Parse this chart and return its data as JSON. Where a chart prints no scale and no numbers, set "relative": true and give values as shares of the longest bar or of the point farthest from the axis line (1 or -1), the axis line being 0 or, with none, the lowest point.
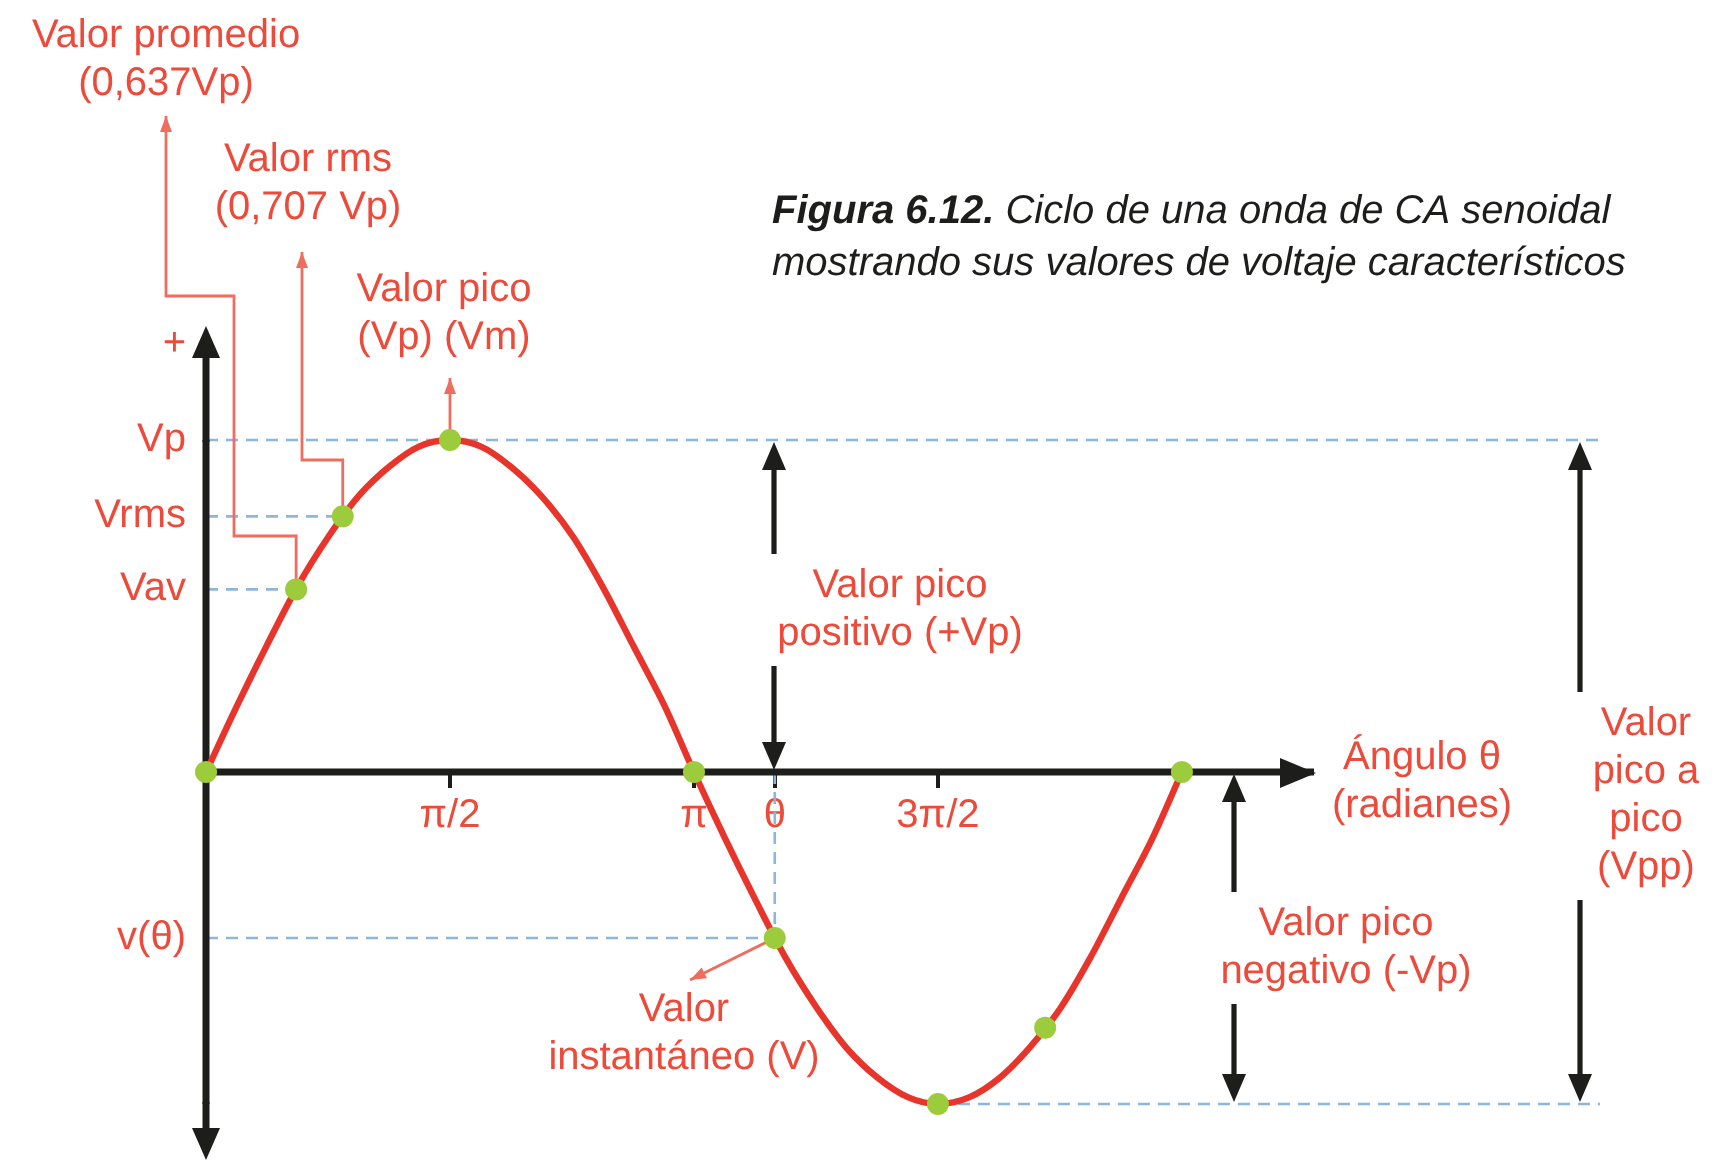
{
  "chart_data": {
    "type": "line",
    "title": "Figura 6.12. Ciclo de una onda de CA senoidal mostrando sus valores de voltaje característicos",
    "xlabel": "Ángulo θ (radianes)",
    "relative": true,
    "series": [
      {
        "color": "#e8352b",
        "marker": "none",
        "x": [
          0,
          0.2,
          0.39,
          0.59,
          0.79,
          0.98,
          1.18,
          1.37,
          1.57,
          1.77,
          1.96,
          2.16,
          2.36,
          2.55,
          2.75,
          2.95,
          3.14,
          3.34,
          3.53,
          3.73,
          3.93,
          4.12,
          4.32,
          4.52,
          4.71,
          4.91,
          5.11,
          5.3,
          5.5,
          5.69,
          5.89,
          6.09,
          6.28
        ],
        "values": [
          0,
          0.2,
          0.38,
          0.56,
          0.71,
          0.83,
          0.92,
          0.98,
          1,
          0.98,
          0.92,
          0.83,
          0.71,
          0.56,
          0.38,
          0.2,
          0,
          -0.2,
          -0.38,
          -0.56,
          -0.71,
          -0.83,
          -0.92,
          -0.98,
          -1,
          -0.98,
          -0.92,
          -0.83,
          -0.71,
          -0.56,
          -0.38,
          -0.2,
          0
        ]
      },
      {
        "type": "scatter",
        "color": "#9ccc3c",
        "marker": "circle",
        "x": [
          0,
          0.58,
          0.88,
          1.57,
          3.14,
          3.66,
          4.71,
          5.4,
          6.28
        ],
        "values": [
          0,
          0.55,
          0.77,
          1,
          0,
          -0.5,
          -1,
          -0.77,
          0
        ]
      }
    ],
    "xlim": [
      0,
      7.13
    ],
    "xticks": [
      {
        "value": 1.57,
        "label": "π/2"
      },
      {
        "value": 3.14,
        "label": "π"
      },
      {
        "value": 3.66,
        "label": "θ"
      },
      {
        "value": 4.71,
        "label": "3π/2"
      }
    ],
    "ref_lines": [
      {
        "axis": "y",
        "value": 1,
        "color": "#8db6de",
        "line_style": "dashed"
      },
      {
        "axis": "y",
        "value": -1,
        "color": "#8db6de",
        "line_style": "dashed"
      },
      {
        "axis": "y",
        "value": 0.77,
        "color": "#8db6de",
        "line_style": "dashed"
      },
      {
        "axis": "y",
        "value": 0.55,
        "color": "#8db6de",
        "line_style": "dashed"
      },
      {
        "axis": "y",
        "value": -0.5,
        "color": "#8db6de",
        "line_style": "dashed"
      },
      {
        "axis": "x",
        "value": 3.66,
        "color": "#8db6de",
        "line_style": "dashed"
      }
    ],
    "annotations": [
      {
        "text": "Valor promedio (0,637Vp)",
        "x": 0.58,
        "y": 0.55
      },
      {
        "text": "Valor rms (0,707 Vp)",
        "x": 0.88,
        "y": 0.77
      },
      {
        "text": "Valor pico (Vp) (Vm)",
        "x": 1.57,
        "y": 1
      },
      {
        "text": "Valor pico positivo (+Vp)",
        "x": 3.66,
        "y": 0
      },
      {
        "text": "Valor instantáneo (V)",
        "x": 3.66,
        "y": -0.5
      },
      {
        "text": "Valor pico negativo (-Vp)",
        "x": 6.62,
        "y": -1
      },
      "Valor pico a pico (Vpp)",
      "+",
      {
        "text": "Vp",
        "x": 0,
        "y": 1
      },
      {
        "text": "Vrms",
        "x": 0,
        "y": 0.77
      },
      {
        "text": "Vav",
        "x": 0,
        "y": 0.55
      },
      {
        "text": "v(θ)",
        "x": 0,
        "y": -0.5
      }
    ]
  }
}
